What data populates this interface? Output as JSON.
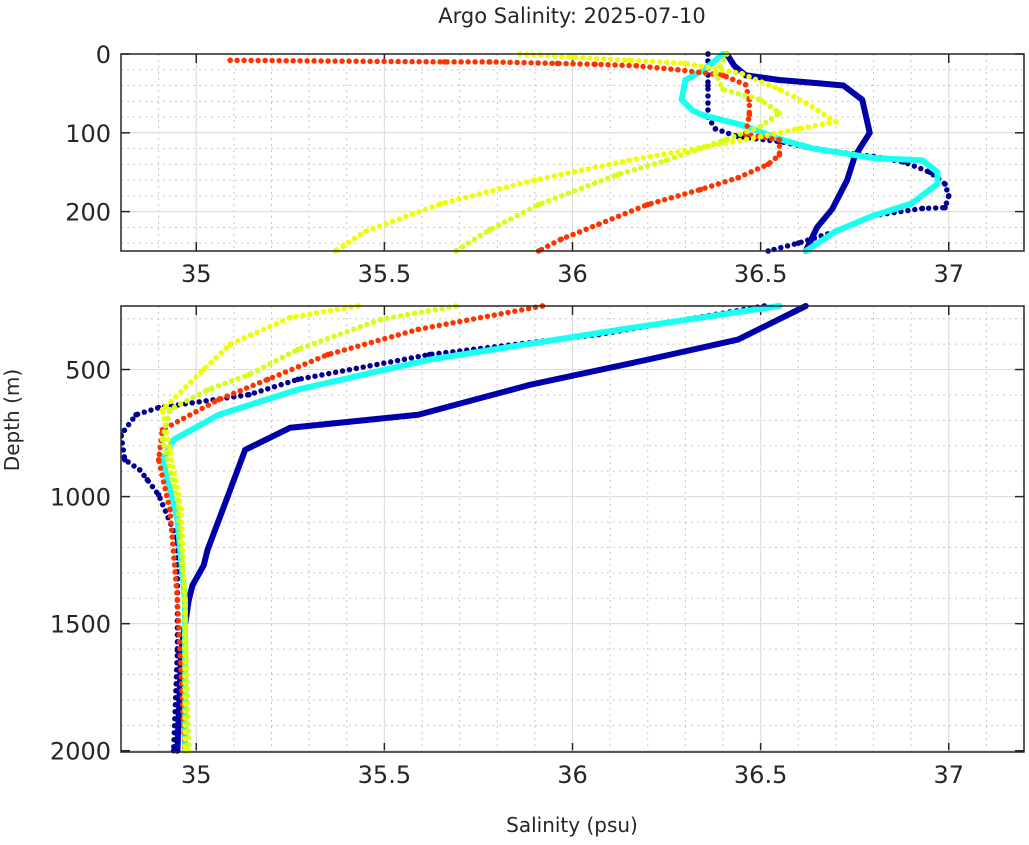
{
  "chart_data": {
    "type": "scatter",
    "title": "Argo Salinity: 2025-07-10",
    "xlabel": "Salinity (psu)",
    "ylabel": "Depth (m)",
    "grid": true,
    "panels": [
      {
        "name": "upper",
        "xlim": [
          34.8,
          37.2
        ],
        "ylim": [
          0,
          250
        ],
        "xticks": [
          "35",
          "35.5",
          "36",
          "36.5",
          "37"
        ],
        "yticks": [
          "0",
          "100",
          "200"
        ],
        "xtick_values": [
          35,
          35.5,
          36,
          36.5,
          37
        ],
        "ytick_values": [
          0,
          100,
          200
        ]
      },
      {
        "name": "lower",
        "xlim": [
          34.8,
          37.2
        ],
        "ylim": [
          250,
          2005
        ],
        "xticks": [
          "35",
          "35.5",
          "36",
          "36.5",
          "37"
        ],
        "yticks": [
          "500",
          "1000",
          "1500",
          "2000"
        ],
        "xtick_values": [
          35,
          35.5,
          36,
          36.5,
          37
        ],
        "ytick_values": [
          500,
          1000,
          1500,
          2000
        ]
      }
    ],
    "series": [
      {
        "name": "profile-navy-dotted",
        "color": "#000090",
        "style": "dotted",
        "upper": [
          [
            36.36,
            0
          ],
          [
            36.36,
            40
          ],
          [
            36.36,
            80
          ],
          [
            36.38,
            95
          ],
          [
            36.44,
            105
          ],
          [
            36.55,
            111
          ],
          [
            36.62,
            118
          ],
          [
            36.7,
            124
          ],
          [
            36.8,
            130
          ],
          [
            36.88,
            137
          ],
          [
            36.95,
            150
          ],
          [
            36.99,
            165
          ],
          [
            37.0,
            180
          ],
          [
            36.99,
            195
          ],
          [
            36.93,
            196
          ],
          [
            36.8,
            205
          ],
          [
            36.7,
            225
          ],
          [
            36.6,
            240
          ],
          [
            36.52,
            250
          ]
        ],
        "lower": [
          [
            36.51,
            250
          ],
          [
            36.07,
            362
          ],
          [
            35.62,
            441
          ],
          [
            35.27,
            539
          ],
          [
            35.14,
            599
          ],
          [
            34.9,
            650
          ],
          [
            34.84,
            678
          ],
          [
            34.8,
            757
          ],
          [
            34.81,
            855
          ],
          [
            34.85,
            895
          ],
          [
            34.87,
            934
          ],
          [
            34.9,
            993
          ],
          [
            34.95,
            1171
          ],
          [
            34.95,
            1605
          ],
          [
            34.94,
            2000
          ]
        ]
      },
      {
        "name": "profile-blue-solid",
        "color": "#0000aa",
        "style": "solid",
        "upper": [
          [
            36.41,
            0
          ],
          [
            36.43,
            15
          ],
          [
            36.46,
            27
          ],
          [
            36.55,
            33
          ],
          [
            36.65,
            37
          ],
          [
            36.72,
            40
          ],
          [
            36.77,
            58
          ],
          [
            36.79,
            100
          ],
          [
            36.75,
            130
          ],
          [
            36.73,
            160
          ],
          [
            36.69,
            197
          ],
          [
            36.65,
            220
          ],
          [
            36.63,
            240
          ],
          [
            36.62,
            250
          ]
        ],
        "lower": [
          [
            36.62,
            250
          ],
          [
            36.44,
            382
          ],
          [
            36.2,
            461
          ],
          [
            35.89,
            559
          ],
          [
            35.59,
            678
          ],
          [
            35.25,
            729
          ],
          [
            35.13,
            816
          ],
          [
            35.09,
            974
          ],
          [
            35.03,
            1210
          ],
          [
            35.02,
            1270
          ],
          [
            34.99,
            1349
          ],
          [
            34.98,
            1408
          ],
          [
            34.96,
            1605
          ],
          [
            34.95,
            2000
          ]
        ]
      },
      {
        "name": "profile-cyan",
        "color": "#1afff0",
        "style": "solid",
        "upper": [
          [
            36.4,
            0
          ],
          [
            36.35,
            20
          ],
          [
            36.3,
            33
          ],
          [
            36.29,
            58
          ],
          [
            36.32,
            72
          ],
          [
            36.35,
            78
          ],
          [
            36.45,
            90
          ],
          [
            36.55,
            108
          ],
          [
            36.64,
            120
          ],
          [
            36.8,
            132
          ],
          [
            36.93,
            135
          ],
          [
            36.97,
            150
          ],
          [
            36.97,
            165
          ],
          [
            36.9,
            190
          ],
          [
            36.8,
            205
          ],
          [
            36.7,
            225
          ],
          [
            36.62,
            250
          ]
        ],
        "lower": [
          [
            36.55,
            250
          ],
          [
            36.13,
            342
          ],
          [
            35.62,
            461
          ],
          [
            35.27,
            579
          ],
          [
            35.06,
            678
          ],
          [
            34.94,
            776
          ],
          [
            34.91,
            855
          ],
          [
            34.95,
            1092
          ],
          [
            34.97,
            1408
          ],
          [
            34.97,
            2000
          ]
        ]
      },
      {
        "name": "profile-red",
        "color": "#ff3300",
        "style": "dotted",
        "upper": [
          [
            35.09,
            8
          ],
          [
            35.66,
            10
          ],
          [
            35.78,
            10
          ],
          [
            35.96,
            12
          ],
          [
            36.06,
            13
          ],
          [
            36.17,
            15
          ],
          [
            36.28,
            20
          ],
          [
            36.4,
            27
          ],
          [
            36.46,
            39
          ],
          [
            36.47,
            58
          ],
          [
            36.47,
            77
          ],
          [
            36.46,
            102
          ],
          [
            36.55,
            109
          ],
          [
            36.55,
            128
          ],
          [
            36.52,
            140
          ],
          [
            36.44,
            157
          ],
          [
            36.34,
            172
          ],
          [
            36.2,
            191
          ],
          [
            36.07,
            216
          ],
          [
            35.97,
            235
          ],
          [
            35.91,
            250
          ]
        ],
        "lower": [
          [
            35.92,
            250
          ],
          [
            35.59,
            342
          ],
          [
            35.35,
            441
          ],
          [
            35.19,
            539
          ],
          [
            35.06,
            618
          ],
          [
            34.91,
            737
          ],
          [
            34.9,
            855
          ],
          [
            34.93,
            1052
          ],
          [
            34.95,
            1408
          ],
          [
            34.97,
            2000
          ]
        ]
      },
      {
        "name": "profile-yellow",
        "color": "#f0ff00",
        "style": "dotted",
        "upper": [
          [
            35.86,
            0
          ],
          [
            36.0,
            4
          ],
          [
            36.15,
            8
          ],
          [
            36.3,
            12
          ],
          [
            36.45,
            25
          ],
          [
            36.55,
            45
          ],
          [
            36.62,
            62
          ],
          [
            36.7,
            86
          ],
          [
            36.6,
            95
          ],
          [
            36.5,
            105
          ],
          [
            36.35,
            118
          ],
          [
            36.15,
            135
          ],
          [
            35.9,
            160
          ],
          [
            35.65,
            190
          ],
          [
            35.45,
            225
          ],
          [
            35.37,
            250
          ]
        ],
        "lower": [
          [
            35.43,
            250
          ],
          [
            35.25,
            295
          ],
          [
            35.09,
            401
          ],
          [
            35.02,
            500
          ],
          [
            34.91,
            658
          ],
          [
            34.93,
            815
          ],
          [
            34.96,
            1050
          ],
          [
            34.97,
            1408
          ],
          [
            34.97,
            2000
          ]
        ]
      },
      {
        "name": "profile-yellow-green",
        "color": "#d4ff1a",
        "style": "dotted",
        "upper": [
          [
            36.41,
            0
          ],
          [
            36.38,
            25
          ],
          [
            36.4,
            45
          ],
          [
            36.5,
            58
          ],
          [
            36.55,
            75
          ],
          [
            36.5,
            92
          ],
          [
            36.4,
            110
          ],
          [
            36.25,
            135
          ],
          [
            36.12,
            153
          ],
          [
            35.91,
            191
          ],
          [
            35.78,
            223
          ],
          [
            35.69,
            250
          ]
        ],
        "lower": [
          [
            35.69,
            250
          ],
          [
            35.49,
            303
          ],
          [
            35.27,
            421
          ],
          [
            35.14,
            520
          ],
          [
            35.03,
            580
          ],
          [
            34.93,
            658
          ],
          [
            34.91,
            776
          ],
          [
            34.95,
            1013
          ],
          [
            34.97,
            1408
          ],
          [
            34.98,
            2000
          ]
        ]
      }
    ]
  }
}
